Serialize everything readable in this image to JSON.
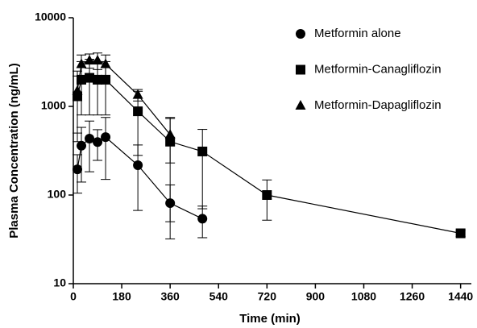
{
  "chart_data": {
    "type": "line",
    "x_label": "Time (min)",
    "y_label": "Plasma Concentration (ng/mL)",
    "xlim": [
      0,
      1480
    ],
    "xticks": [
      0,
      180,
      360,
      540,
      720,
      900,
      1080,
      1260,
      1440
    ],
    "ylim": [
      10,
      10000
    ],
    "yticks": [
      10,
      100,
      1000,
      10000
    ],
    "y_log": true,
    "legend": "top-right",
    "series": [
      {
        "name": "Metformin alone",
        "color": "#000000",
        "marker": "circle",
        "x": [
          15,
          30,
          60,
          90,
          120,
          240,
          360,
          480
        ],
        "values": [
          195,
          360,
          433,
          396,
          450,
          217,
          81,
          54
        ],
        "errors": [
          90,
          220,
          250,
          150,
          300,
          150,
          49,
          21
        ]
      },
      {
        "name": "Metformin-Canagliflozin",
        "color": "#000000",
        "marker": "square",
        "x": [
          15,
          30,
          60,
          90,
          120,
          240,
          360,
          480,
          720,
          1440
        ],
        "values": [
          1300,
          2000,
          2100,
          2000,
          2000,
          880,
          400,
          310,
          100,
          37
        ],
        "errors": [
          900,
          1200,
          1300,
          1200,
          1200,
          600,
          350,
          240,
          48,
          3
        ]
      },
      {
        "name": "Metformin-Dapagliflozin",
        "color": "#000000",
        "marker": "triangle",
        "x": [
          15,
          30,
          60,
          90,
          120,
          240,
          360
        ],
        "values": [
          1500,
          3000,
          3300,
          3300,
          3000,
          1350,
          480
        ],
        "errors": [
          1000,
          800,
          600,
          700,
          800,
          200,
          250
        ]
      }
    ]
  }
}
